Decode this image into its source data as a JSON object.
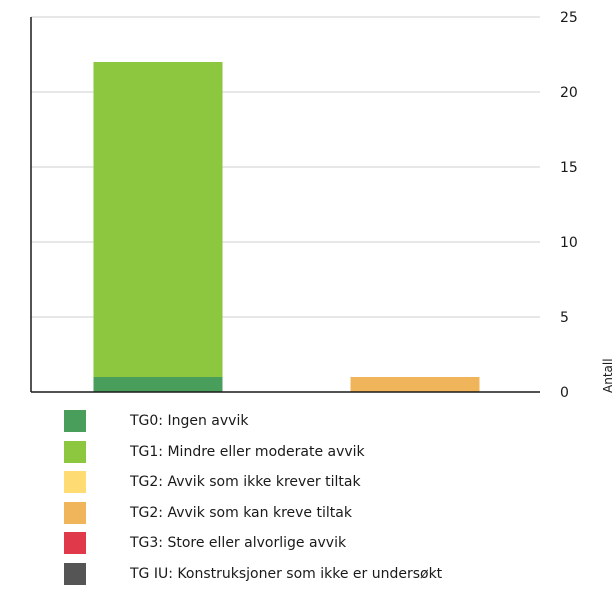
{
  "chart_data": {
    "type": "bar",
    "stacked": true,
    "categories": [
      "",
      ""
    ],
    "ylabel": "Antall",
    "ylim": [
      0,
      25
    ],
    "yticks": [
      0,
      5,
      10,
      15,
      20,
      25
    ],
    "y_axis_side": "right",
    "grid": true,
    "legend_position": "bottom",
    "series": [
      {
        "name": "TG0: Ingen avvik",
        "color": "#4a9e5c",
        "values": [
          1,
          0
        ]
      },
      {
        "name": "TG1: Mindre eller moderate avvik",
        "color": "#8dc63f",
        "values": [
          21,
          0
        ]
      },
      {
        "name": "TG2: Avvik som ikke krever tiltak",
        "color": "#ffdc73",
        "values": [
          0,
          0
        ]
      },
      {
        "name": "TG2: Avvik som kan kreve tiltak",
        "color": "#f0b45a",
        "values": [
          0,
          1
        ]
      },
      {
        "name": "TG3: Store eller alvorlige avvik",
        "color": "#e03a4a",
        "values": [
          0,
          0
        ]
      },
      {
        "name": "TG IU: Konstruksjoner som ikke er undersøkt",
        "color": "#555555",
        "values": [
          0,
          0
        ]
      }
    ]
  }
}
